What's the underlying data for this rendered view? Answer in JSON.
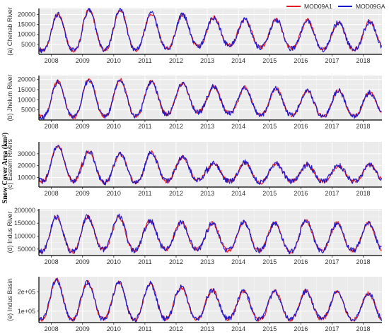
{
  "figure": {
    "global_ylabel": "Snow Cover Area (km²)",
    "legend": [
      {
        "name": "MOD09A1",
        "color": "#e31a1c"
      },
      {
        "name": "MOD09GA",
        "color": "#1010cc"
      }
    ]
  },
  "chart_data": [
    {
      "type": "line",
      "panel_label": "(a) Chenab River",
      "xlim": [
        2007.6,
        2018.6
      ],
      "x_ticks": [
        "2008",
        "2009",
        "2010",
        "2011",
        "2012",
        "2013",
        "2014",
        "2015",
        "2016",
        "2017",
        "2018"
      ],
      "ylim": [
        0,
        23000
      ],
      "y_ticks": [
        5000,
        10000,
        15000,
        20000
      ],
      "y_tick_labels": [
        "5000",
        "10000",
        "15000",
        "20000"
      ],
      "peak_month": 2.5,
      "peaks": [
        20000,
        22500,
        22500,
        20500,
        20000,
        18500,
        17500,
        17500,
        17000,
        16000,
        16500
      ],
      "troughs": [
        2000,
        2200,
        2200,
        3000,
        4000,
        4500,
        3500,
        3000,
        2500,
        2500,
        2800
      ],
      "series": [
        {
          "name": "MOD09A1",
          "color": "#e31a1c"
        },
        {
          "name": "MOD09GA",
          "color": "#1010cc"
        }
      ]
    },
    {
      "type": "line",
      "panel_label": "(b) Jhelum River",
      "xlim": [
        2007.6,
        2018.6
      ],
      "x_ticks": [
        "2008",
        "2009",
        "2010",
        "2011",
        "2012",
        "2013",
        "2014",
        "2015",
        "2016",
        "2017",
        "2018"
      ],
      "ylim": [
        0,
        22000
      ],
      "y_ticks": [
        5000,
        10000,
        15000,
        20000
      ],
      "y_tick_labels": [
        "5000",
        "10000",
        "15000",
        "20000"
      ],
      "peak_month": 2.5,
      "peaks": [
        19000,
        20000,
        20000,
        19000,
        18000,
        16500,
        16000,
        15500,
        14500,
        14500,
        13500
      ],
      "troughs": [
        1500,
        2000,
        2000,
        3000,
        4000,
        3500,
        2500,
        2500,
        2000,
        2000,
        2500
      ],
      "series": [
        {
          "name": "MOD09A1",
          "color": "#e31a1c"
        },
        {
          "name": "MOD09GA",
          "color": "#1010cc"
        }
      ]
    },
    {
      "type": "line",
      "panel_label": "(c) Eastern Rivers",
      "xlim": [
        2007.6,
        2018.6
      ],
      "x_ticks": [
        "2008",
        "2009",
        "2010",
        "2011",
        "2012",
        "2013",
        "2014",
        "2015",
        "2016",
        "2017",
        "2018"
      ],
      "ylim": [
        2000,
        40000
      ],
      "y_ticks": [
        10000,
        20000,
        30000
      ],
      "y_tick_labels": [
        "10000",
        "20000",
        "30000"
      ],
      "peak_month": 2.5,
      "peaks": [
        37000,
        32000,
        30000,
        31000,
        27000,
        22000,
        23000,
        22000,
        21000,
        20000,
        21000
      ],
      "troughs": [
        7000,
        6000,
        6000,
        7000,
        8000,
        7000,
        6000,
        7000,
        7000,
        7000,
        7000
      ],
      "series": [
        {
          "name": "MOD09A1",
          "color": "#e31a1c"
        },
        {
          "name": "MOD09GA",
          "color": "#1010cc"
        }
      ]
    },
    {
      "type": "line",
      "panel_label": "(d) Indus River",
      "xlim": [
        2007.6,
        2018.6
      ],
      "x_ticks": [
        "2008",
        "2009",
        "2010",
        "2011",
        "2012",
        "2013",
        "2014",
        "2015",
        "2016",
        "2017",
        "2018"
      ],
      "ylim": [
        25000,
        205000
      ],
      "y_ticks": [
        50000,
        100000,
        150000,
        200000
      ],
      "y_tick_labels": [
        "50000",
        "100000",
        "150000",
        "200000"
      ],
      "peak_month": 2.0,
      "peaks": [
        175000,
        175000,
        175000,
        160000,
        155000,
        150000,
        155000,
        150000,
        160000,
        150000,
        150000
      ],
      "troughs": [
        40000,
        50000,
        45000,
        50000,
        50000,
        45000,
        45000,
        40000,
        45000,
        45000,
        45000
      ],
      "series": [
        {
          "name": "MOD09A1",
          "color": "#e31a1c"
        },
        {
          "name": "MOD09GA",
          "color": "#1010cc"
        }
      ]
    },
    {
      "type": "line",
      "panel_label": "(e) Indus Basin",
      "xlim": [
        2007.6,
        2018.6
      ],
      "x_ticks": [
        "2008",
        "2009",
        "2010",
        "2011",
        "2012",
        "2013",
        "2014",
        "2015",
        "2016",
        "2017",
        "2018"
      ],
      "ylim": [
        40000,
        280000
      ],
      "y_ticks": [
        100000,
        200000
      ],
      "y_tick_labels": [
        "1e+05",
        "2e+05"
      ],
      "peak_month": 2.0,
      "peaks": [
        265000,
        250000,
        250000,
        245000,
        225000,
        210000,
        205000,
        205000,
        205000,
        200000,
        195000
      ],
      "troughs": [
        55000,
        60000,
        55000,
        60000,
        60000,
        60000,
        55000,
        55000,
        60000,
        55000,
        55000
      ],
      "series": [
        {
          "name": "MOD09A1",
          "color": "#e31a1c"
        },
        {
          "name": "MOD09GA",
          "color": "#1010cc"
        }
      ]
    }
  ]
}
